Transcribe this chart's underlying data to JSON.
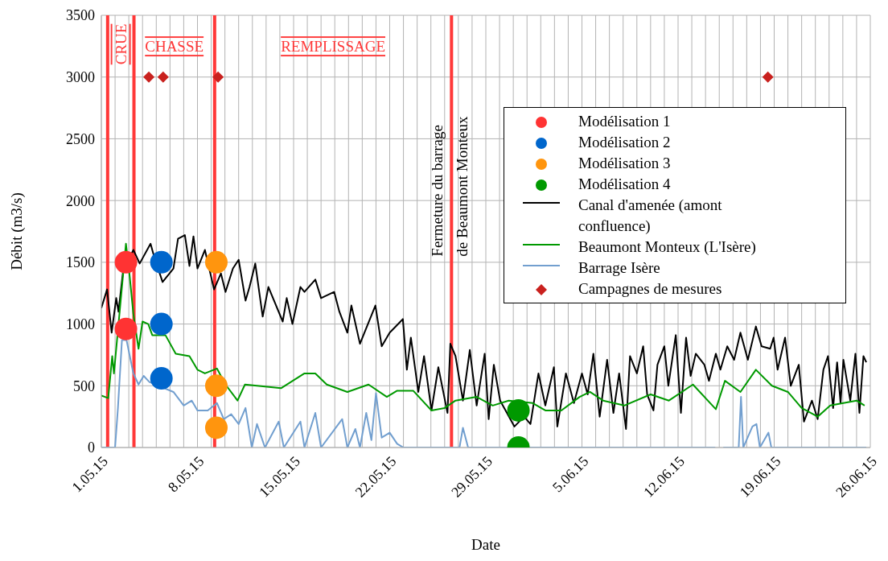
{
  "chart_data": {
    "type": "line",
    "xlabel": "Date",
    "ylabel": "Débit (m3/s)",
    "legend": "right",
    "grid": true,
    "xlim": [
      "--05-01",
      "--06-26"
    ],
    "xticks": [
      {
        "value": "--05-01",
        "label": "1.05.15"
      },
      {
        "value": "--05-02",
        "label": null
      },
      {
        "value": "--05-03",
        "label": null
      },
      {
        "value": "--05-04",
        "label": null
      },
      {
        "value": "--05-05",
        "label": null
      },
      {
        "value": "--05-06",
        "label": null
      },
      {
        "value": "--05-07",
        "label": null
      },
      {
        "value": "--05-08",
        "label": "8.05.15"
      },
      {
        "value": "--05-09",
        "label": null
      },
      {
        "value": "--05-10",
        "label": null
      },
      {
        "value": "--05-11",
        "label": null
      },
      {
        "value": "--05-12",
        "label": null
      },
      {
        "value": "--05-13",
        "label": null
      },
      {
        "value": "--05-14",
        "label": null
      },
      {
        "value": "--05-15",
        "label": "15.05.15"
      },
      {
        "value": "--05-16",
        "label": null
      },
      {
        "value": "--05-17",
        "label": null
      },
      {
        "value": "--05-18",
        "label": null
      },
      {
        "value": "--05-19",
        "label": null
      },
      {
        "value": "--05-20",
        "label": null
      },
      {
        "value": "--05-21",
        "label": null
      },
      {
        "value": "--05-22",
        "label": "22.05.15"
      },
      {
        "value": "--05-23",
        "label": null
      },
      {
        "value": "--05-24",
        "label": null
      },
      {
        "value": "--05-25",
        "label": null
      },
      {
        "value": "--05-26",
        "label": null
      },
      {
        "value": "--05-27",
        "label": null
      },
      {
        "value": "--05-28",
        "label": null
      },
      {
        "value": "--05-29",
        "label": "29.05.15"
      },
      {
        "value": "--05-30",
        "label": null
      },
      {
        "value": "--05-31",
        "label": null
      },
      {
        "value": "--06-01",
        "label": null
      },
      {
        "value": "--06-02",
        "label": null
      },
      {
        "value": "--06-03",
        "label": null
      },
      {
        "value": "--06-04",
        "label": null
      },
      {
        "value": "--06-05",
        "label": "5.06.15"
      },
      {
        "value": "--06-06",
        "label": null
      },
      {
        "value": "--06-07",
        "label": null
      },
      {
        "value": "--06-08",
        "label": null
      },
      {
        "value": "--06-09",
        "label": null
      },
      {
        "value": "--06-10",
        "label": null
      },
      {
        "value": "--06-11",
        "label": null
      },
      {
        "value": "--06-12",
        "label": "12.06.15"
      },
      {
        "value": "--06-13",
        "label": null
      },
      {
        "value": "--06-14",
        "label": null
      },
      {
        "value": "--06-15",
        "label": null
      },
      {
        "value": "--06-16",
        "label": null
      },
      {
        "value": "--06-17",
        "label": null
      },
      {
        "value": "--06-18",
        "label": null
      },
      {
        "value": "--06-19",
        "label": "19.06.15"
      },
      {
        "value": "--06-20",
        "label": null
      },
      {
        "value": "--06-21",
        "label": null
      },
      {
        "value": "--06-22",
        "label": null
      },
      {
        "value": "--06-23",
        "label": null
      },
      {
        "value": "--06-24",
        "label": null
      },
      {
        "value": "--06-25",
        "label": null
      },
      {
        "value": "--06-26",
        "label": "26.06.15"
      }
    ],
    "ylim": [
      0,
      3500
    ],
    "yticks": [
      0,
      500,
      1000,
      1500,
      2000,
      2500,
      3000,
      3500
    ],
    "ref_lines": [
      {
        "axis": "x",
        "value": "--05-01T11:00",
        "color": "#ff3838"
      },
      {
        "axis": "x",
        "value": "--05-03T09:00",
        "color": "#ff3838"
      },
      {
        "axis": "x",
        "value": "--05-09T06:00",
        "color": "#ff3838"
      },
      {
        "axis": "x",
        "value": "--05-26T12:00",
        "color": "#ff3838",
        "label": "Fermeture du barrage\nde Beaumont Monteux"
      }
    ],
    "annotations": [
      "CRUE",
      "CHASSE",
      "REMPLISSAGE"
    ],
    "series": [
      {
        "name": "Modélisation 1",
        "type": "scatter",
        "marker": "circle",
        "color": "#ff3333",
        "x": [
          "--05-02T19:00",
          "--05-02T19:00"
        ],
        "values": [
          1500,
          960
        ]
      },
      {
        "name": "Modélisation 2",
        "type": "scatter",
        "marker": "circle",
        "color": "#0066cc",
        "x": [
          "--05-05T09:00",
          "--05-05T09:00",
          "--05-05T09:00"
        ],
        "values": [
          1500,
          1000,
          560
        ]
      },
      {
        "name": "Modélisation 3",
        "type": "scatter",
        "marker": "circle",
        "color": "#ff950e",
        "x": [
          "--05-09T09:00",
          "--05-09T09:00",
          "--05-09T09:00"
        ],
        "values": [
          1500,
          500,
          160
        ]
      },
      {
        "name": "Modélisation 4",
        "type": "scatter",
        "marker": "circle",
        "color": "#009900",
        "x": [
          "--05-31T09:00",
          "--05-31T09:00"
        ],
        "values": [
          300,
          0
        ]
      },
      {
        "name": "Canal d'amenée (amont confluence)",
        "color": "#000000",
        "x": [
          "--05-01T00:00",
          "--05-01T10:00",
          "--05-01T18:00",
          "--05-02T02:00",
          "--05-02T06:00",
          "--05-02T14:00",
          "--05-03T08:00",
          "--05-03T19:00",
          "--05-04T14:00",
          "--05-04T20:00",
          "--05-05T11:00",
          "--05-06T06:00",
          "--05-06T14:00",
          "--05-07T02:00",
          "--05-07T10:00",
          "--05-07T17:00",
          "--05-08T00:00",
          "--05-08T13:00",
          "--05-09T05:00",
          "--05-09T17:00",
          "--05-10T01:00",
          "--05-10T14:00",
          "--05-11T00:00",
          "--05-11T12:00",
          "--05-11T19:00",
          "--05-12T05:00",
          "--05-12T18:00",
          "--05-13T04:00",
          "--05-14T05:00",
          "--05-14T12:00",
          "--05-14T22:00",
          "--05-15T12:00",
          "--05-15T19:00",
          "--05-16T14:00",
          "--05-17T00:00",
          "--05-17T23:00",
          "--05-18T08:00",
          "--05-18T22:00",
          "--05-19T05:00",
          "--05-19T20:00",
          "--05-20T23:00",
          "--05-21T10:00",
          "--05-22T00:00",
          "--05-22T23:00",
          "--05-23T06:00",
          "--05-23T13:00",
          "--05-24T02:00",
          "--05-24T12:00",
          "--05-25T01:00",
          "--05-25T13:00",
          "--05-26T05:00",
          "--05-26T10:00",
          "--05-26T19:00",
          "--05-27T08:00",
          "--05-27T20:00",
          "--05-28T08:00",
          "--05-28T22:00",
          "--05-29T05:00",
          "--05-29T14:00",
          "--05-30T01:00",
          "--05-31T02:00",
          "--05-31T19:00",
          "--06-01T06:00",
          "--06-01T20:00",
          "--06-02T08:00",
          "--06-02T23:00",
          "--06-03T05:00",
          "--06-03T20:00",
          "--06-04T10:00",
          "--06-05T00:00",
          "--06-05T10:00",
          "--06-05T20:00",
          "--06-06T07:00",
          "--06-06T20:00",
          "--06-07T07:00",
          "--06-07T17:00",
          "--06-08T05:00",
          "--06-08T12:00",
          "--06-09T00:00",
          "--06-09T11:00",
          "--06-09T18:00",
          "--06-10T05:00",
          "--06-10T12:00",
          "--06-11T00:00",
          "--06-11T07:00",
          "--06-11T20:00",
          "--06-12T05:00",
          "--06-12T14:00",
          "--06-12T22:00",
          "--06-13T07:00",
          "--06-13T22:00",
          "--06-14T06:00",
          "--06-14T18:00",
          "--06-15T02:00",
          "--06-15T14:00",
          "--06-16T02:00",
          "--06-16T13:00",
          "--06-17T02:00",
          "--06-17T16:00",
          "--06-18T02:00",
          "--06-18T17:00",
          "--06-18T23:00",
          "--06-19T06:00",
          "--06-19T19:00",
          "--06-20T05:00",
          "--06-20T19:00",
          "--06-21T04:00",
          "--06-21T18:00",
          "--06-22T04:00",
          "--06-22T14:00",
          "--06-22T22:00",
          "--06-23T07:00",
          "--06-23T14:00",
          "--06-23T20:00",
          "--06-24T01:00",
          "--06-24T13:00",
          "--06-24T22:00",
          "--06-25T05:00",
          "--06-25T12:00",
          "--06-25T17:00"
        ],
        "values": [
          1130,
          1280,
          930,
          1210,
          1100,
          1430,
          1600,
          1490,
          1650,
          1550,
          1340,
          1450,
          1690,
          1720,
          1470,
          1710,
          1450,
          1600,
          1280,
          1410,
          1260,
          1450,
          1520,
          1190,
          1300,
          1490,
          1060,
          1300,
          1020,
          1210,
          1000,
          1300,
          1260,
          1360,
          1210,
          1260,
          1100,
          930,
          1150,
          840,
          1150,
          820,
          930,
          1040,
          630,
          890,
          450,
          740,
          300,
          650,
          280,
          840,
          740,
          380,
          790,
          340,
          760,
          230,
          670,
          380,
          170,
          250,
          190,
          600,
          340,
          650,
          170,
          600,
          360,
          600,
          430,
          760,
          250,
          710,
          280,
          600,
          150,
          740,
          600,
          820,
          430,
          300,
          670,
          820,
          500,
          910,
          280,
          890,
          580,
          760,
          670,
          540,
          760,
          630,
          820,
          710,
          930,
          710,
          980,
          820,
          800,
          890,
          630,
          890,
          500,
          670,
          210,
          380,
          230,
          630,
          740,
          320,
          690,
          360,
          710,
          380,
          760,
          280,
          740,
          690
        ]
      },
      {
        "name": "Beaumont Monteux (L'Isère)",
        "color": "#009900",
        "x": [
          "--05-01T00:00",
          "--05-01T12:00",
          "--05-01T19:00",
          "--05-01T22:00",
          "--05-02T19:00",
          "--05-03T01:00",
          "--05-03T08:00",
          "--05-03T17:00",
          "--05-04T00:00",
          "--05-04T10:00",
          "--05-04T17:00",
          "--05-05T16:00",
          "--05-06T10:00",
          "--05-07T10:00",
          "--05-08T00:00",
          "--05-08T13:00",
          "--05-09T10:00",
          "--05-10T01:00",
          "--05-10T22:00",
          "--05-11T11:00",
          "--05-14T02:00",
          "--05-15T19:00",
          "--05-16T14:00",
          "--05-17T10:00",
          "--05-18T22:00",
          "--05-20T11:00",
          "--05-21T19:00",
          "--05-22T13:00",
          "--05-23T17:00",
          "--05-25T01:00",
          "--05-26T00:00",
          "--05-26T19:00",
          "--05-28T08:00",
          "--05-29T12:00",
          "--05-30T16:00",
          "--06-01T10:00",
          "--06-02T08:00",
          "--06-03T12:00",
          "--06-04T20:00",
          "--06-05T14:00",
          "--06-06T13:00",
          "--06-08T02:00",
          "--06-10T00:00",
          "--06-11T08:00",
          "--06-13T02:00",
          "--06-14T18:00",
          "--06-15T10:00",
          "--06-16T13:00",
          "--06-17T16:00",
          "--06-18T20:00",
          "--06-20T00:00",
          "--06-21T00:00",
          "--06-22T04:00",
          "--06-23T02:00",
          "--06-25T00:00",
          "--06-25T14:00"
        ],
        "values": [
          420,
          400,
          740,
          600,
          1650,
          1410,
          1080,
          800,
          1020,
          1000,
          910,
          910,
          760,
          740,
          630,
          600,
          640,
          510,
          380,
          510,
          480,
          600,
          600,
          510,
          450,
          510,
          410,
          460,
          460,
          300,
          320,
          380,
          410,
          340,
          380,
          360,
          300,
          300,
          410,
          450,
          380,
          340,
          430,
          380,
          510,
          310,
          540,
          450,
          630,
          500,
          450,
          320,
          250,
          340,
          380,
          340
        ]
      },
      {
        "name": "Barrage Isère",
        "color": "#729fcf",
        "x": [
          "--05-01T00:00",
          "--05-02T00:00",
          "--05-02T05:00",
          "--05-02T12:00",
          "--05-02T20:00",
          "--05-03T08:00",
          "--05-03T17:00",
          "--05-04T02:00",
          "--05-04T12:00",
          "--05-06T06:00",
          "--05-07T00:00",
          "--05-07T14:00",
          "--05-08T00:00",
          "--05-08T18:00",
          "--05-09T10:00",
          "--05-09T22:00",
          "--05-10T11:00",
          "--05-11T00:00",
          "--05-11T12:00",
          "--05-11T23:00",
          "--05-12T08:00",
          "--05-12T22:00",
          "--05-13T22:00",
          "--05-14T07:00",
          "--05-15T12:00",
          "--05-15T19:00",
          "--05-16T14:00",
          "--05-17T00:00",
          "--05-18T13:00",
          "--05-18T22:00",
          "--05-19T12:00",
          "--05-19T20:00",
          "--05-20T07:00",
          "--05-20T16:00",
          "--05-21T00:00",
          "--05-21T10:00",
          "--05-22T00:00",
          "--05-22T13:00",
          "--05-23T00:00",
          "--05-27T02:00",
          "--05-27T08:00",
          "--05-27T17:00",
          "--06-14T17:00",
          "--06-14T22:00",
          "--06-15T07:00",
          "--06-16T10:00",
          "--06-16T14:00",
          "--06-16T18:00",
          "--06-17T10:00",
          "--06-17T17:00",
          "--06-17T23:00",
          "--06-18T14:00",
          "--06-18T19:00",
          "--06-25T17:00"
        ],
        "values": [
          0,
          0,
          320,
          870,
          870,
          600,
          510,
          580,
          530,
          450,
          340,
          380,
          300,
          300,
          360,
          230,
          270,
          190,
          320,
          0,
          190,
          0,
          210,
          0,
          210,
          0,
          280,
          0,
          230,
          0,
          150,
          0,
          280,
          60,
          440,
          80,
          120,
          30,
          0,
          0,
          160,
          0,
          0,
          null,
          0,
          0,
          410,
          0,
          170,
          190,
          0,
          120,
          0,
          0
        ]
      },
      {
        "name": "Campagnes de mesures",
        "type": "scatter",
        "marker": "diamond",
        "color": "#c9211e",
        "x": [
          "--05-04T11:00",
          "--05-05T12:00",
          "--05-09T12:00",
          "--06-18T13:00"
        ],
        "values": [
          3000,
          3000,
          3000,
          3000
        ]
      }
    ]
  }
}
